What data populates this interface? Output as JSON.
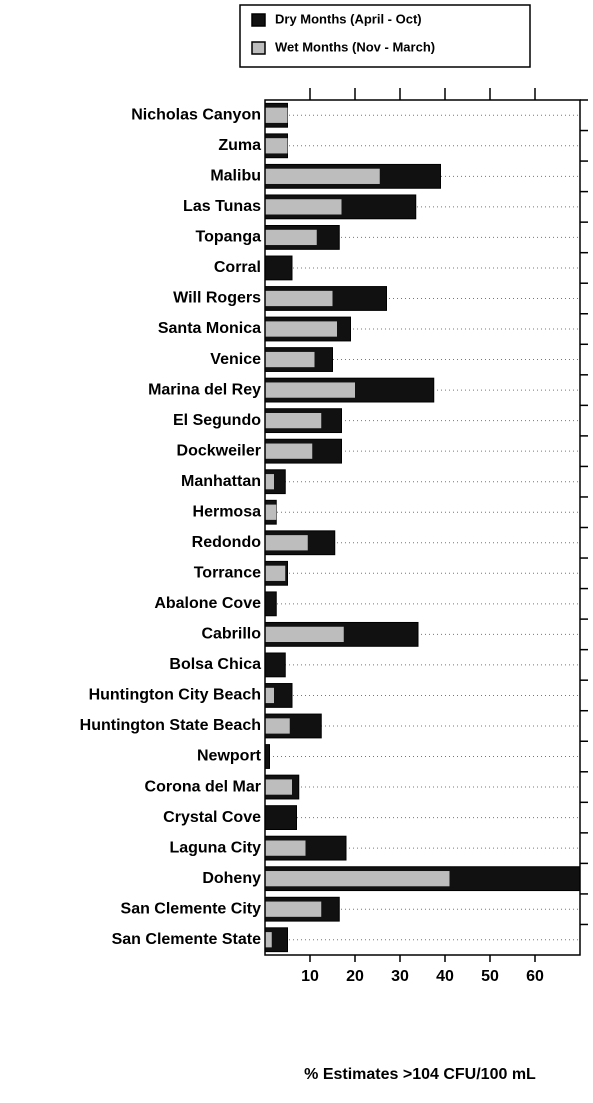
{
  "chart_data": {
    "type": "bar",
    "orientation": "horizontal",
    "overlap": true,
    "x_label": "% Estimates >104 CFU/100 mL",
    "categories": [
      "Nicholas Canyon",
      "Zuma",
      "Malibu",
      "Las Tunas",
      "Topanga",
      "Corral",
      "Will Rogers",
      "Santa Monica",
      "Venice",
      "Marina del Rey",
      "El Segundo",
      "Dockweiler",
      "Manhattan",
      "Hermosa",
      "Redondo",
      "Torrance",
      "Abalone Cove",
      "Cabrillo",
      "Bolsa Chica",
      "Huntington City Beach",
      "Huntington State Beach",
      "Newport",
      "Corona del Mar",
      "Crystal Cove",
      "Laguna City",
      "Doheny",
      "San Clemente City",
      "San Clemente State"
    ],
    "series": [
      {
        "name": "Dry Months (April - Oct)",
        "color": "#111111",
        "values": [
          5,
          5,
          39,
          33.5,
          16.5,
          6,
          27,
          19,
          15,
          37.5,
          17,
          17,
          4.5,
          2.5,
          15.5,
          5,
          2.5,
          34,
          4.5,
          6,
          12.5,
          1,
          7.5,
          7,
          18,
          70,
          16.5,
          5
        ]
      },
      {
        "name": "Wet Months (Nov - March)",
        "color": "#bdbdbd",
        "values": [
          5,
          5,
          25.5,
          17,
          11.5,
          0,
          15,
          16,
          11,
          20,
          12.5,
          10.5,
          2,
          2.5,
          9.5,
          4.5,
          0,
          17.5,
          0,
          2,
          5.5,
          0,
          6,
          0,
          9,
          41,
          12.5,
          1.5
        ]
      }
    ],
    "xlim": [
      0,
      70
    ],
    "xticks": [
      10,
      20,
      30,
      40,
      50,
      60
    ],
    "legend": "top"
  }
}
